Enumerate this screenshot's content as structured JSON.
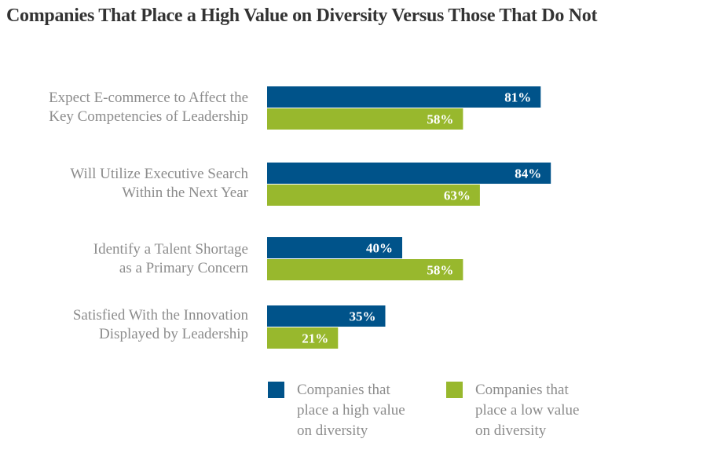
{
  "chart_data": {
    "type": "bar",
    "orientation": "horizontal",
    "title": "Companies That Place a High Value on Diversity Versus Those That Do Not",
    "categories": [
      "Expect E-commerce to Affect the\nKey Competencies of Leadership",
      "Will Utilize Executive Search\nWithin the Next Year",
      "Identify a Talent Shortage\nas a Primary Concern",
      "Satisfied With the Innovation\nDisplayed by Leadership"
    ],
    "series": [
      {
        "name": "Companies that\nplace a high value\non diversity",
        "color": "#00538a",
        "values": [
          81,
          84,
          40,
          35
        ],
        "labels": [
          "81%",
          "84%",
          "40%",
          "35%"
        ]
      },
      {
        "name": "Companies that\nplace a low value\non diversity",
        "color": "#98b82d",
        "values": [
          58,
          63,
          58,
          21
        ],
        "labels": [
          "58%",
          "63%",
          "58%",
          "21%"
        ]
      }
    ],
    "xlabel": "",
    "ylabel": "",
    "xlim": [
      0,
      100
    ],
    "grid": false,
    "legend_position": "bottom"
  }
}
